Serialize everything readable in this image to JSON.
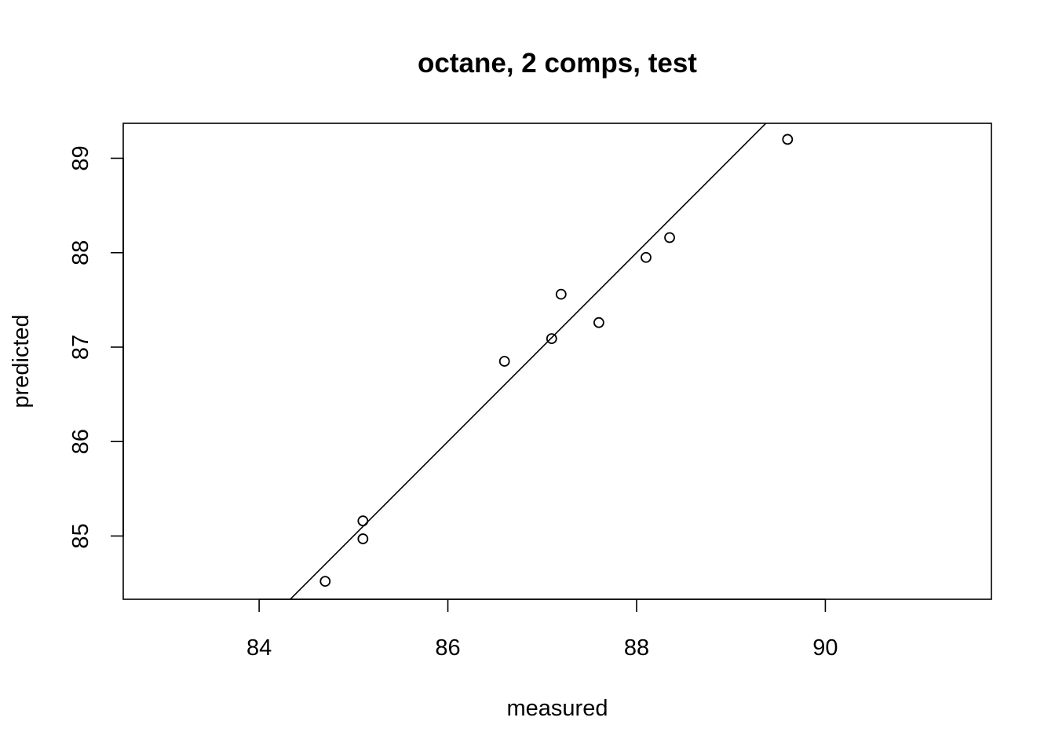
{
  "chart_data": {
    "type": "scatter",
    "title": "octane, 2 comps, test",
    "xlabel": "measured",
    "ylabel": "predicted",
    "xlim": [
      82.56,
      91.76
    ],
    "ylim": [
      84.33,
      89.37
    ],
    "x_ticks": [
      84,
      86,
      88,
      90
    ],
    "y_ticks": [
      85,
      86,
      87,
      88,
      89
    ],
    "x_tick_labels": [
      "84",
      "86",
      "88",
      "90"
    ],
    "y_tick_labels": [
      "85",
      "86",
      "87",
      "88",
      "89"
    ],
    "points": [
      {
        "x": 84.7,
        "y": 84.52
      },
      {
        "x": 85.1,
        "y": 84.97
      },
      {
        "x": 85.1,
        "y": 85.16
      },
      {
        "x": 86.6,
        "y": 86.85
      },
      {
        "x": 87.1,
        "y": 87.09
      },
      {
        "x": 87.2,
        "y": 87.56
      },
      {
        "x": 87.6,
        "y": 87.26
      },
      {
        "x": 88.1,
        "y": 87.95
      },
      {
        "x": 88.35,
        "y": 88.16
      },
      {
        "x": 89.6,
        "y": 89.2
      }
    ],
    "reference_line": {
      "intercept": 0,
      "slope": 1
    },
    "grid": false,
    "legend": "none",
    "colors": {
      "points": "#000000",
      "line": "#000000",
      "box": "#000000"
    }
  }
}
